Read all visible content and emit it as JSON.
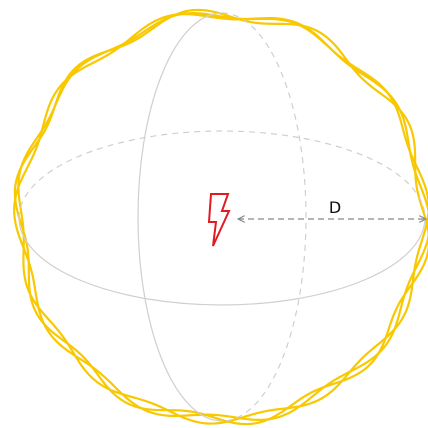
{
  "annotation": {
    "label": "D"
  }
}
